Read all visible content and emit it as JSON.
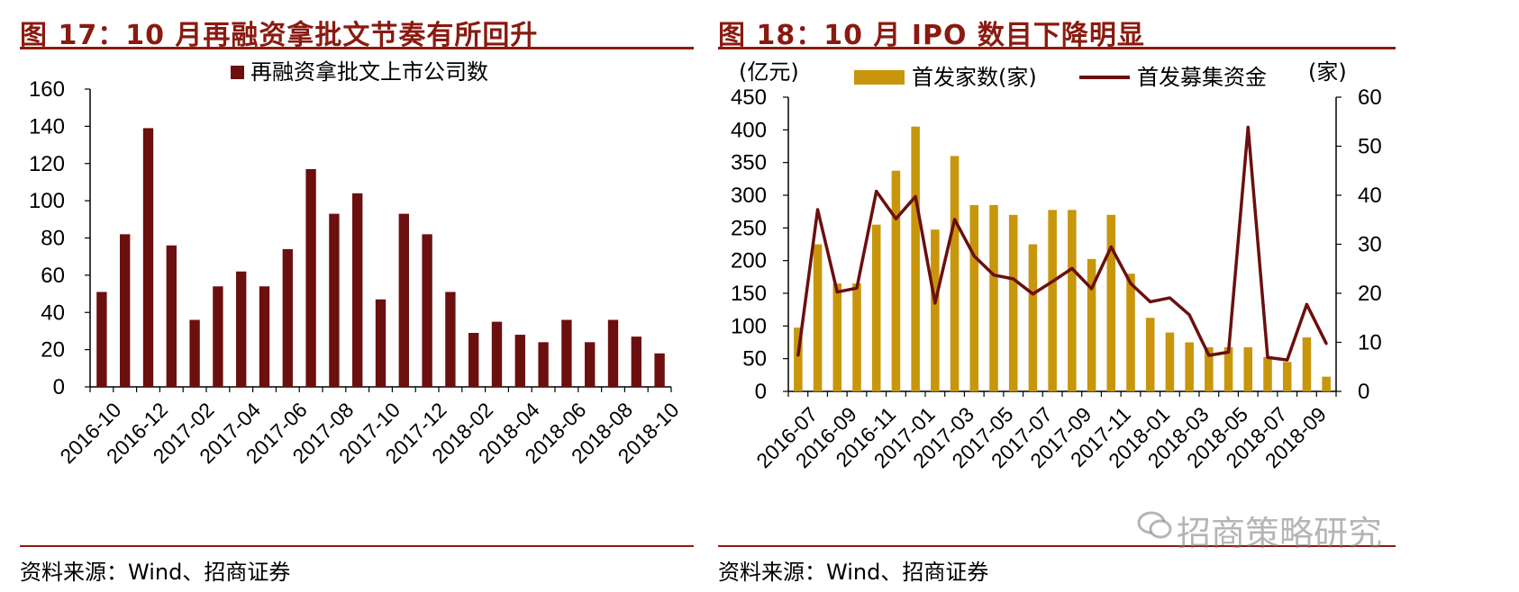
{
  "left_panel": {
    "title": "图 17：10 月再融资拿批文节奏有所回升",
    "source": "资料来源：Wind、招商证券"
  },
  "right_panel": {
    "title": "图 18：10 月 IPO 数目下降明显",
    "source": "资料来源：Wind、招商证券"
  },
  "watermark": "招商策略研究",
  "colors": {
    "brand": "#8a1a10",
    "bar_left": "#6b0f0f",
    "bar_right": "#c8960c",
    "line_right": "#6b0f0f"
  },
  "chart_data": [
    {
      "type": "bar",
      "legend_position": "top",
      "grid": false,
      "ylim": [
        0,
        160
      ],
      "yticks": [
        "0",
        "20",
        "40",
        "60",
        "80",
        "100",
        "120",
        "140",
        "160"
      ],
      "x_tick_labels": [
        "2016-10",
        "2016-12",
        "2017-02",
        "2017-04",
        "2017-06",
        "2017-08",
        "2017-10",
        "2017-12",
        "2018-02",
        "2018-04",
        "2018-06",
        "2018-08",
        "2018-10"
      ],
      "categories": [
        "2016-10",
        "2016-11",
        "2016-12",
        "2017-01",
        "2017-02",
        "2017-03",
        "2017-04",
        "2017-05",
        "2017-06",
        "2017-07",
        "2017-08",
        "2017-09",
        "2017-10",
        "2017-11",
        "2017-12",
        "2018-01",
        "2018-02",
        "2018-03",
        "2018-04",
        "2018-05",
        "2018-06",
        "2018-07",
        "2018-08",
        "2018-09",
        "2018-10"
      ],
      "series": [
        {
          "name": "再融资拿批文上市公司数",
          "values": [
            51,
            82,
            139,
            76,
            36,
            54,
            62,
            54,
            74,
            117,
            93,
            104,
            47,
            93,
            82,
            51,
            29,
            35,
            28,
            24,
            36,
            24,
            36,
            27,
            18
          ]
        }
      ]
    },
    {
      "type": "bar",
      "legend_position": "top",
      "grid": false,
      "y_left_label": "(亿元)",
      "y_right_label": "(家)",
      "ylim_left": [
        0,
        450
      ],
      "ylim_right": [
        0,
        60
      ],
      "yticks_left": [
        "0",
        "50",
        "100",
        "150",
        "200",
        "250",
        "300",
        "350",
        "400",
        "450"
      ],
      "yticks_right": [
        "0",
        "10",
        "20",
        "30",
        "40",
        "50",
        "60"
      ],
      "x_tick_labels": [
        "2016-07",
        "2016-09",
        "2016-11",
        "2017-01",
        "2017-03",
        "2017-05",
        "2017-07",
        "2017-09",
        "2017-11",
        "2018-01",
        "2018-03",
        "2018-05",
        "2018-07",
        "2018-09"
      ],
      "categories": [
        "2016-07",
        "2016-08",
        "2016-09",
        "2016-10",
        "2016-11",
        "2016-12",
        "2017-01",
        "2017-02",
        "2017-03",
        "2017-04",
        "2017-05",
        "2017-06",
        "2017-07",
        "2017-08",
        "2017-09",
        "2017-10",
        "2017-11",
        "2017-12",
        "2018-01",
        "2018-02",
        "2018-03",
        "2018-04",
        "2018-05",
        "2018-06",
        "2018-07",
        "2018-08",
        "2018-09",
        "2018-10"
      ],
      "series": [
        {
          "name": "首发家数(家)",
          "kind": "bar",
          "axis": "right",
          "values": [
            13,
            30,
            22,
            22,
            34,
            45,
            54,
            33,
            48,
            38,
            38,
            36,
            30,
            37,
            37,
            27,
            36,
            24,
            15,
            12,
            10,
            9,
            9,
            9,
            7,
            6,
            11,
            3
          ]
        },
        {
          "name": "首发募集资金",
          "kind": "line",
          "axis": "left",
          "values": [
            55,
            278,
            152,
            158,
            306,
            264,
            298,
            135,
            263,
            207,
            178,
            172,
            149,
            168,
            188,
            157,
            221,
            165,
            137,
            143,
            117,
            55,
            60,
            404,
            52,
            48,
            133,
            73
          ]
        }
      ]
    }
  ]
}
